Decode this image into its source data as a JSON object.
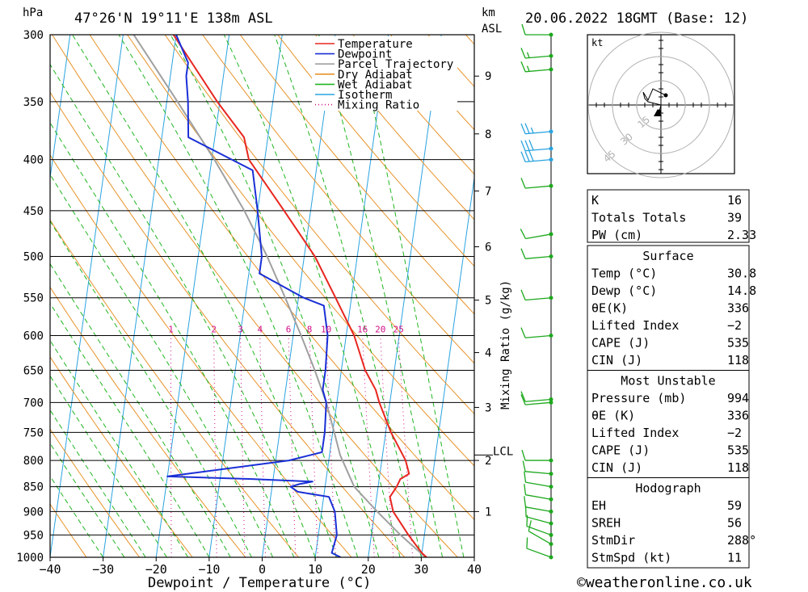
{
  "header": {
    "pressure_unit": "hPa",
    "location": "47°26'N  19°11'E  138m  ASL",
    "km_label": "km",
    "asl_label": "ASL",
    "datetime": "20.06.2022  18GMT  (Base: 12)"
  },
  "footer": {
    "copyright": "©weatheronline.co.uk"
  },
  "colors": {
    "temperature": "#e8261f",
    "dewpoint": "#1a2fd6",
    "parcel": "#a0a0a0",
    "dry_adiabat": "#e8932a",
    "wet_adiabat": "#21b521",
    "isotherm": "#2aa3e0",
    "mixing_ratio": "#d0108a",
    "wind": "#1ca81c"
  },
  "chart_data": {
    "type": "skew-t",
    "title": "47°26'N  19°11'E  138m  ASL",
    "xlabel": "Dewpoint / Temperature (°C)",
    "ylabel": "hPa",
    "x_ticks": [
      "−40",
      "−30",
      "−20",
      "−10",
      "0",
      "10",
      "20",
      "30",
      "40"
    ],
    "x_values": [
      -40,
      -30,
      -20,
      -10,
      0,
      10,
      20,
      30,
      40
    ],
    "pressure_levels": [
      300,
      350,
      400,
      450,
      500,
      550,
      600,
      650,
      700,
      750,
      800,
      850,
      900,
      950,
      1000
    ],
    "km_ticks": [
      {
        "label": "1",
        "p": 900
      },
      {
        "label": "2",
        "p": 800
      },
      {
        "label": "3",
        "p": 708
      },
      {
        "label": "4",
        "p": 624
      },
      {
        "label": "5",
        "p": 553
      },
      {
        "label": "6",
        "p": 489
      },
      {
        "label": "7",
        "p": 430
      },
      {
        "label": "8",
        "p": 377
      },
      {
        "label": "9",
        "p": 330
      }
    ],
    "lcl": {
      "label": "LCL",
      "p": 790
    },
    "mixing_ratio_axis_label": "Mixing Ratio (g/kg)",
    "mixing_ratio_values": [
      1,
      2,
      3,
      4,
      6,
      8,
      10,
      16,
      20,
      25
    ],
    "mixing_ratio_labels": [
      "1",
      "2",
      "3",
      "4",
      "6",
      "8",
      "10",
      "16",
      "20",
      "25"
    ],
    "legend": [
      "Temperature",
      "Dewpoint",
      "Parcel Trajectory",
      "Dry Adiabat",
      "Wet Adiabat",
      "Isotherm",
      "Mixing Ratio"
    ],
    "series": [
      {
        "name": "Temperature",
        "points": [
          [
            1000,
            31.0
          ],
          [
            990,
            30.0
          ],
          [
            970,
            28.5
          ],
          [
            950,
            27.0
          ],
          [
            900,
            23.5
          ],
          [
            870,
            22.5
          ],
          [
            860,
            23.0
          ],
          [
            850,
            23.5
          ],
          [
            835,
            24.0
          ],
          [
            825,
            25.5
          ],
          [
            800,
            24.5
          ],
          [
            750,
            21.0
          ],
          [
            700,
            18.0
          ],
          [
            680,
            17.0
          ],
          [
            650,
            14.5
          ],
          [
            600,
            11.5
          ],
          [
            550,
            7.0
          ],
          [
            500,
            2.0
          ],
          [
            450,
            -5.0
          ],
          [
            400,
            -13.0
          ],
          [
            380,
            -14.5
          ],
          [
            350,
            -20.5
          ],
          [
            300,
            -30.5
          ]
        ]
      },
      {
        "name": "Dewpoint",
        "points": [
          [
            1000,
            14.8
          ],
          [
            990,
            13.0
          ],
          [
            950,
            13.5
          ],
          [
            900,
            12.5
          ],
          [
            870,
            11.0
          ],
          [
            860,
            5.0
          ],
          [
            850,
            3.5
          ],
          [
            845,
            5.0
          ],
          [
            840,
            7.5
          ],
          [
            835,
            -4.0
          ],
          [
            830,
            -20.0
          ],
          [
            800,
            2.5
          ],
          [
            785,
            8.5
          ],
          [
            750,
            8.5
          ],
          [
            700,
            8.0
          ],
          [
            680,
            7.0
          ],
          [
            650,
            7.0
          ],
          [
            600,
            6.5
          ],
          [
            560,
            5.0
          ],
          [
            550,
            1.0
          ],
          [
            520,
            -8.0
          ],
          [
            500,
            -8.0
          ],
          [
            450,
            -10.0
          ],
          [
            410,
            -12.0
          ],
          [
            380,
            -25.0
          ],
          [
            350,
            -26.0
          ],
          [
            330,
            -27.0
          ],
          [
            320,
            -27.0
          ],
          [
            300,
            -30.0
          ]
        ]
      },
      {
        "name": "Parcel Trajectory",
        "points": [
          [
            1000,
            30.8
          ],
          [
            950,
            25.5
          ],
          [
            900,
            20.5
          ],
          [
            850,
            15.5
          ],
          [
            790,
            12.0
          ],
          [
            750,
            10.3
          ],
          [
            700,
            8.0
          ],
          [
            650,
            5.0
          ],
          [
            600,
            1.5
          ],
          [
            550,
            -2.5
          ],
          [
            500,
            -7.0
          ],
          [
            450,
            -12.5
          ],
          [
            400,
            -19.5
          ],
          [
            350,
            -28.0
          ],
          [
            300,
            -38.0
          ]
        ]
      }
    ],
    "winds": [
      {
        "p": 1000,
        "dir": 290,
        "spd": 10
      },
      {
        "p": 970,
        "dir": 300,
        "spd": 10
      },
      {
        "p": 950,
        "dir": 290,
        "spd": 10
      },
      {
        "p": 925,
        "dir": 285,
        "spd": 10
      },
      {
        "p": 900,
        "dir": 280,
        "spd": 10
      },
      {
        "p": 875,
        "dir": 280,
        "spd": 10
      },
      {
        "p": 850,
        "dir": 280,
        "spd": 10
      },
      {
        "p": 825,
        "dir": 275,
        "spd": 10
      },
      {
        "p": 800,
        "dir": 270,
        "spd": 10
      },
      {
        "p": 700,
        "dir": 265,
        "spd": 10
      },
      {
        "p": 695,
        "dir": 265,
        "spd": 10
      },
      {
        "p": 600,
        "dir": 265,
        "spd": 10
      },
      {
        "p": 550,
        "dir": 265,
        "spd": 10
      },
      {
        "p": 500,
        "dir": 265,
        "spd": 10
      },
      {
        "p": 475,
        "dir": 260,
        "spd": 10
      },
      {
        "p": 425,
        "dir": 265,
        "spd": 10
      },
      {
        "p": 400,
        "dir": 265,
        "spd": 30
      },
      {
        "p": 390,
        "dir": 265,
        "spd": 30
      },
      {
        "p": 375,
        "dir": 265,
        "spd": 25
      },
      {
        "p": 325,
        "dir": 265,
        "spd": 15
      },
      {
        "p": 315,
        "dir": 265,
        "spd": 15
      },
      {
        "p": 300,
        "dir": 270,
        "spd": 10
      }
    ],
    "hodograph": {
      "unit_label": "kt",
      "ring_labels": [
        "15",
        "30",
        "45"
      ],
      "rings": [
        15,
        30,
        45
      ],
      "points": [
        [
          -1,
          -4
        ],
        [
          0,
          0
        ],
        [
          -8,
          2
        ],
        [
          -10,
          4
        ],
        [
          -11,
          8
        ],
        [
          -8,
          3
        ],
        [
          -5,
          10
        ],
        [
          3,
          6
        ]
      ],
      "storm": [
        -2,
        -5
      ]
    }
  },
  "indices": {
    "K": "16",
    "Totals Totals": "39",
    "PW (cm)": "2.33"
  },
  "surface": {
    "title": "Surface",
    "rows": [
      [
        "Temp (°C)",
        "30.8"
      ],
      [
        "Dewp (°C)",
        "14.8"
      ],
      [
        "θE(K)",
        "336"
      ],
      [
        "Lifted Index",
        "−2"
      ],
      [
        "CAPE (J)",
        "535"
      ],
      [
        "CIN (J)",
        "118"
      ]
    ]
  },
  "most_unstable": {
    "title": "Most Unstable",
    "rows": [
      [
        "Pressure (mb)",
        "994"
      ],
      [
        "θE (K)",
        "336"
      ],
      [
        "Lifted Index",
        "−2"
      ],
      [
        "CAPE (J)",
        "535"
      ],
      [
        "CIN (J)",
        "118"
      ]
    ]
  },
  "hodograph_table": {
    "title": "Hodograph",
    "rows": [
      [
        "EH",
        "59"
      ],
      [
        "SREH",
        "56"
      ],
      [
        "StmDir",
        "288°"
      ],
      [
        "StmSpd (kt)",
        "11"
      ]
    ]
  }
}
